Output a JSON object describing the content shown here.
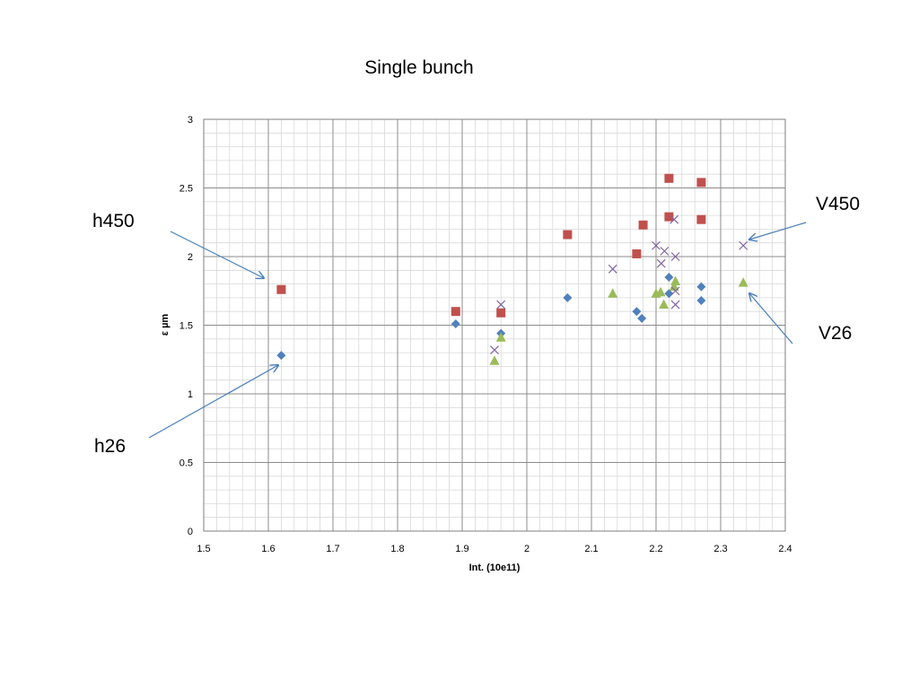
{
  "chart_data": {
    "type": "scatter",
    "title": "Single bunch",
    "xlabel": "Int. (10e11)",
    "ylabel": "ε µm",
    "xlim": [
      1.5,
      2.4
    ],
    "ylim": [
      0,
      3
    ],
    "x_ticks": [
      "1.5",
      "1.6",
      "1.7",
      "1.8",
      "1.9",
      "2",
      "2.1",
      "2.2",
      "2.3",
      "2.4"
    ],
    "y_ticks": [
      "0",
      "0.5",
      "1",
      "1.5",
      "2",
      "2.5",
      "3"
    ],
    "grid": true,
    "legend": "none",
    "series": [
      {
        "marker": "diamond",
        "color": "#4F81BD",
        "points": [
          [
            1.62,
            1.28
          ],
          [
            1.89,
            1.51
          ],
          [
            1.96,
            1.44
          ],
          [
            2.063,
            1.7
          ],
          [
            2.17,
            1.6
          ],
          [
            2.178,
            1.55
          ],
          [
            2.22,
            1.85
          ],
          [
            2.22,
            1.73
          ],
          [
            2.27,
            1.78
          ],
          [
            2.27,
            1.68
          ]
        ]
      },
      {
        "marker": "square",
        "color": "#C0504D",
        "points": [
          [
            1.62,
            1.76
          ],
          [
            1.89,
            1.6
          ],
          [
            1.96,
            1.59
          ],
          [
            2.063,
            2.16
          ],
          [
            2.17,
            2.02
          ],
          [
            2.18,
            2.23
          ],
          [
            2.22,
            2.57
          ],
          [
            2.22,
            2.29
          ],
          [
            2.27,
            2.54
          ],
          [
            2.27,
            2.27
          ]
        ]
      },
      {
        "marker": "triangle",
        "color": "#9BBB59",
        "points": [
          [
            1.95,
            1.24
          ],
          [
            1.96,
            1.41
          ],
          [
            2.133,
            1.73
          ],
          [
            2.2,
            1.73
          ],
          [
            2.207,
            1.74
          ],
          [
            2.212,
            1.65
          ],
          [
            2.228,
            1.78
          ],
          [
            2.23,
            1.82
          ],
          [
            2.335,
            1.81
          ]
        ]
      },
      {
        "marker": "x",
        "color": "#8064A2",
        "points": [
          [
            1.95,
            1.32
          ],
          [
            1.96,
            1.65
          ],
          [
            2.133,
            1.91
          ],
          [
            2.2,
            2.08
          ],
          [
            2.208,
            1.95
          ],
          [
            2.213,
            2.04
          ],
          [
            2.228,
            2.27
          ],
          [
            2.23,
            2.0
          ],
          [
            2.23,
            1.75
          ],
          [
            2.23,
            1.65
          ],
          [
            2.335,
            2.08
          ]
        ]
      }
    ],
    "annotations": [
      {
        "text": "h450",
        "target": [
          1.595,
          1.83
        ]
      },
      {
        "text": "h26",
        "target": [
          1.61,
          1.22
        ]
      },
      {
        "text": "V450",
        "target": [
          2.343,
          2.12
        ]
      },
      {
        "text": "V26",
        "target": [
          2.342,
          1.75
        ]
      }
    ]
  }
}
